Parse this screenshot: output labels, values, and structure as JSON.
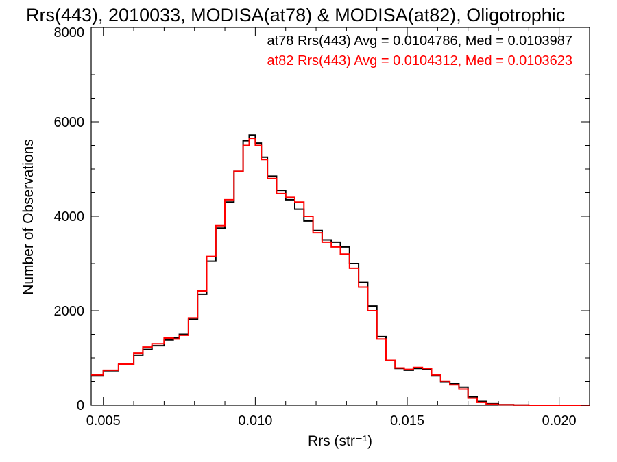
{
  "chart_data": {
    "type": "line",
    "step": true,
    "title": "Rrs(443), 2010033, MODISA(at78) & MODISA(at82), Oligotrophic",
    "xlabel": "Rrs (str⁻¹)",
    "ylabel": "Number of Observations",
    "xlim": [
      0.0046,
      0.021
    ],
    "ylim": [
      0,
      8000
    ],
    "x_ticks": [
      0.005,
      0.01,
      0.015,
      0.02
    ],
    "x_tick_labels": [
      "0.005",
      "0.010",
      "0.015",
      "0.020"
    ],
    "y_ticks": [
      0,
      2000,
      4000,
      6000,
      8000
    ],
    "y_tick_labels": [
      "0",
      "2000",
      "4000",
      "6000",
      "8000"
    ],
    "grid": false,
    "legend_position": "top-right",
    "annotations": [
      "at78 Rrs(443) Avg = 0.0104786, Med = 0.0103987",
      "at82 Rrs(443) Avg = 0.0104312, Med = 0.0103623"
    ],
    "series": [
      {
        "color": "#000000",
        "x": [
          0.0046,
          0.005,
          0.0055,
          0.006,
          0.0063,
          0.0066,
          0.007,
          0.0073,
          0.0075,
          0.0078,
          0.0081,
          0.0084,
          0.0087,
          0.009,
          0.0093,
          0.0096,
          0.0098,
          0.01,
          0.0102,
          0.0104,
          0.0107,
          0.011,
          0.0113,
          0.0116,
          0.0119,
          0.0122,
          0.0125,
          0.0128,
          0.0131,
          0.0134,
          0.0137,
          0.014,
          0.0143,
          0.0146,
          0.0149,
          0.0152,
          0.0155,
          0.0158,
          0.0161,
          0.0164,
          0.0167,
          0.017,
          0.0173,
          0.0176,
          0.018,
          0.0185,
          0.019,
          0.02,
          0.021
        ],
        "y": [
          620,
          730,
          860,
          1060,
          1180,
          1260,
          1380,
          1420,
          1500,
          1820,
          2350,
          3050,
          3750,
          4300,
          4950,
          5600,
          5720,
          5550,
          5250,
          4850,
          4550,
          4350,
          4150,
          3900,
          3700,
          3500,
          3450,
          3350,
          3000,
          2600,
          2100,
          1450,
          950,
          780,
          740,
          780,
          760,
          620,
          500,
          450,
          380,
          180,
          80,
          30,
          10,
          5,
          0,
          0,
          0
        ]
      },
      {
        "color": "#ff0000",
        "x": [
          0.0046,
          0.005,
          0.0055,
          0.006,
          0.0063,
          0.0066,
          0.007,
          0.0073,
          0.0075,
          0.0078,
          0.0081,
          0.0084,
          0.0087,
          0.009,
          0.0093,
          0.0096,
          0.0098,
          0.01,
          0.0102,
          0.0104,
          0.0107,
          0.011,
          0.0113,
          0.0116,
          0.0119,
          0.0122,
          0.0125,
          0.0128,
          0.0131,
          0.0134,
          0.0137,
          0.014,
          0.0143,
          0.0146,
          0.0149,
          0.0152,
          0.0155,
          0.0158,
          0.0161,
          0.0164,
          0.0167,
          0.017,
          0.0173,
          0.0176,
          0.018,
          0.0185,
          0.019,
          0.02,
          0.021
        ],
        "y": [
          640,
          740,
          870,
          1100,
          1230,
          1300,
          1420,
          1400,
          1480,
          1850,
          2420,
          3150,
          3800,
          4350,
          4950,
          5500,
          5650,
          5500,
          5200,
          4800,
          4480,
          4400,
          4300,
          4000,
          3650,
          3450,
          3350,
          3200,
          2900,
          2500,
          2000,
          1400,
          950,
          790,
          760,
          800,
          780,
          640,
          510,
          430,
          340,
          150,
          60,
          20,
          8,
          3,
          0,
          0,
          0
        ]
      }
    ]
  }
}
